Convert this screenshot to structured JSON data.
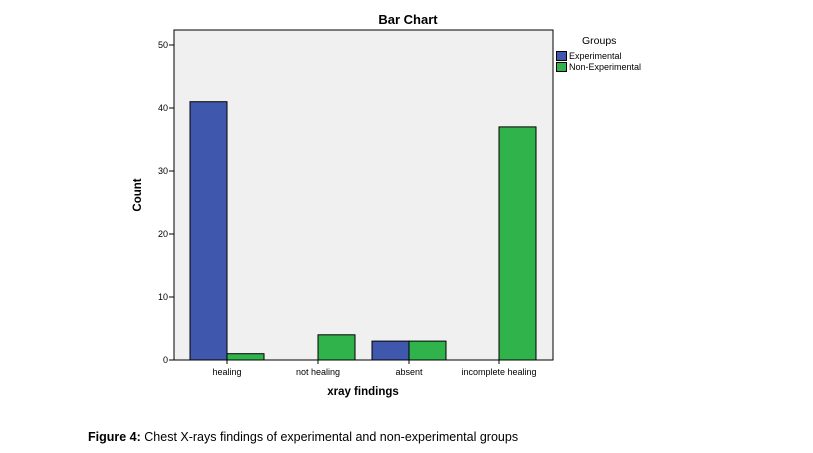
{
  "chart_data": {
    "type": "bar",
    "title": "Bar Chart",
    "xlabel": "xray findings",
    "ylabel": "Count",
    "categories": [
      "healing",
      "not healing",
      "absent",
      "incomplete healing"
    ],
    "series": [
      {
        "name": "Experimental",
        "values": [
          41,
          0,
          3,
          0
        ],
        "color": "#3f57ad"
      },
      {
        "name": "Non-Experimental",
        "values": [
          1,
          4,
          3,
          37
        ],
        "color": "#2fb34a"
      }
    ],
    "ylim": [
      0,
      50
    ],
    "yticks": [
      "0",
      "10",
      "20",
      "30",
      "40",
      "50"
    ],
    "grid": false,
    "legend": {
      "title": "Groups",
      "position": "right"
    },
    "plot_background": "#f0f0f0"
  },
  "caption": {
    "label": "Figure 4:",
    "text": " Chest X-rays findings of experimental and non-experimental groups"
  }
}
